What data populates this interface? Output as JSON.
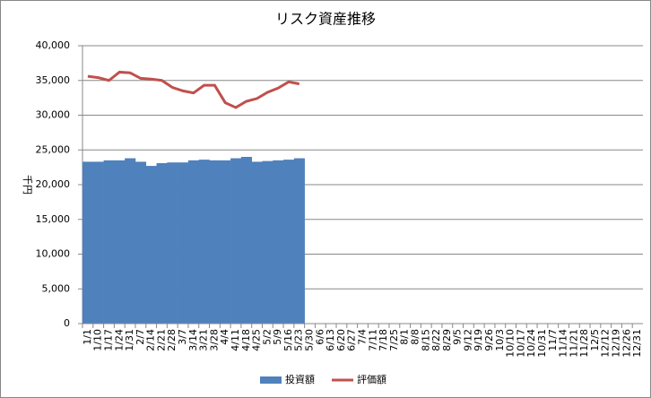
{
  "chart_data": {
    "type": "bar_line",
    "title": "リスク資産推移",
    "y_label": "千円",
    "categories": [
      "1/1",
      "1/10",
      "1/17",
      "1/24",
      "1/31",
      "2/7",
      "2/14",
      "2/21",
      "2/28",
      "3/7",
      "3/14",
      "3/21",
      "3/28",
      "4/4",
      "4/11",
      "4/18",
      "4/25",
      "5/2",
      "5/9",
      "5/16",
      "5/23",
      "5/30",
      "6/6",
      "6/13",
      "6/20",
      "6/27",
      "7/4",
      "7/11",
      "7/18",
      "7/25",
      "8/1",
      "8/8",
      "8/15",
      "8/22",
      "8/29",
      "9/5",
      "9/12",
      "9/19",
      "9/26",
      "10/3",
      "10/10",
      "10/17",
      "10/24",
      "10/31",
      "11/7",
      "11/14",
      "11/21",
      "11/28",
      "12/5",
      "12/12",
      "12/19",
      "12/26",
      "12/31"
    ],
    "series": [
      {
        "name": "投資額",
        "type": "bar",
        "color": "#4f81bd",
        "values": [
          23300,
          23300,
          23500,
          23500,
          23800,
          23300,
          22700,
          23100,
          23200,
          23200,
          23500,
          23600,
          23500,
          23500,
          23800,
          24000,
          23300,
          23400,
          23500,
          23600,
          23800,
          null,
          null,
          null,
          null,
          null,
          null,
          null,
          null,
          null,
          null,
          null,
          null,
          null,
          null,
          null,
          null,
          null,
          null,
          null,
          null,
          null,
          null,
          null,
          null,
          null,
          null,
          null,
          null,
          null,
          null,
          null,
          null
        ]
      },
      {
        "name": "評価額",
        "type": "line",
        "color": "#c0504d",
        "values": [
          35600,
          35400,
          35000,
          36200,
          36100,
          35300,
          35200,
          35000,
          34000,
          33500,
          33200,
          34300,
          34300,
          31800,
          31100,
          32000,
          32400,
          33300,
          33900,
          34800,
          34500,
          null,
          null,
          null,
          null,
          null,
          null,
          null,
          null,
          null,
          null,
          null,
          null,
          null,
          null,
          null,
          null,
          null,
          null,
          null,
          null,
          null,
          null,
          null,
          null,
          null,
          null,
          null,
          null,
          null,
          null,
          null,
          null
        ]
      }
    ],
    "ylim": [
      0,
      40000
    ],
    "yticks": [
      0,
      {
        "value": 5000,
        "label": "5,000"
      },
      {
        "value": 10000,
        "label": "10,000"
      },
      {
        "value": 15000,
        "label": "15,000"
      },
      {
        "value": 20000,
        "label": "20,000"
      },
      {
        "value": 25000,
        "label": "25,000"
      },
      {
        "value": 30000,
        "label": "30,000"
      },
      {
        "value": 35000,
        "label": "35,000"
      },
      {
        "value": 40000,
        "label": "40,000"
      }
    ],
    "grid": true,
    "legend": "bottom"
  }
}
